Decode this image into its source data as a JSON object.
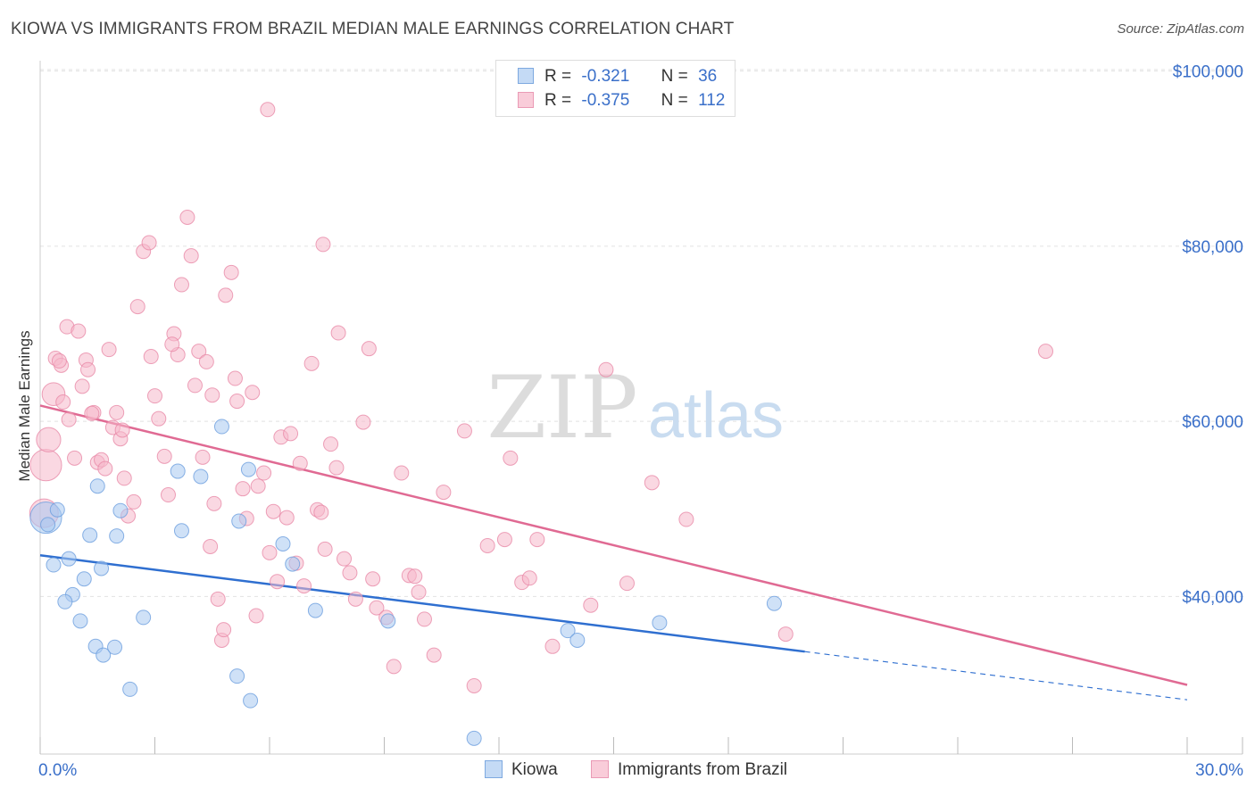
{
  "header": {
    "title": "KIOWA VS IMMIGRANTS FROM BRAZIL MEDIAN MALE EARNINGS CORRELATION CHART",
    "source": "Source: ZipAtlas.com"
  },
  "watermark": {
    "zip": "ZIP",
    "atlas": "atlas"
  },
  "legend": {
    "rows": [
      {
        "r_label": "R =",
        "r_value": "-0.321",
        "n_label": "N =",
        "n_value": "36",
        "color": "#a8c8f0"
      },
      {
        "r_label": "R =",
        "r_value": "-0.375",
        "n_label": "N =",
        "n_value": "112",
        "color": "#f5b8cb"
      }
    ]
  },
  "colors": {
    "kiowa_fill": "#a8c8f0",
    "kiowa_stroke": "#6d9fdf",
    "kiowa_line": "#2f6fd0",
    "brazil_fill": "#f5b8cb",
    "brazil_stroke": "#e88aa8",
    "brazil_line": "#e06a93",
    "axis_label": "#3a6fc9"
  },
  "chart_data": {
    "type": "scatter",
    "title": "KIOWA VS IMMIGRANTS FROM BRAZIL MEDIAN MALE EARNINGS CORRELATION CHART",
    "xlabel": "",
    "ylabel": "Median Male Earnings",
    "xlim": [
      0,
      30
    ],
    "ylim": [
      22000,
      102000
    ],
    "x_tick_labels": [
      "0.0%",
      "30.0%"
    ],
    "y_ticks": [
      40000,
      60000,
      80000,
      100000
    ],
    "y_tick_labels": [
      "$40,000",
      "$60,000",
      "$80,000",
      "$100,000"
    ],
    "grid": true,
    "series": [
      {
        "name": "Kiowa",
        "r": -0.321,
        "n": 36,
        "trend": {
          "x0": 0,
          "y0": 44700,
          "x1": 20,
          "y1": 33700,
          "dash_to_x": 30,
          "dash_to_y": 28200
        },
        "points": [
          [
            0.15,
            49000,
            2.2
          ],
          [
            0.2,
            48200,
            1
          ],
          [
            0.45,
            49900,
            1
          ],
          [
            0.35,
            43600,
            1
          ],
          [
            0.75,
            44300,
            1
          ],
          [
            1.3,
            47000,
            1
          ],
          [
            1.6,
            43200,
            1
          ],
          [
            1.5,
            52600,
            1
          ],
          [
            2.1,
            49800,
            1
          ],
          [
            2.0,
            46900,
            1
          ],
          [
            1.15,
            42000,
            1
          ],
          [
            0.85,
            40200,
            1
          ],
          [
            0.65,
            39400,
            1
          ],
          [
            1.05,
            37200,
            1
          ],
          [
            2.7,
            37600,
            1
          ],
          [
            1.45,
            34300,
            1
          ],
          [
            1.65,
            33300,
            1
          ],
          [
            1.95,
            34200,
            1
          ],
          [
            2.35,
            29400,
            1
          ],
          [
            3.6,
            54300,
            1
          ],
          [
            3.7,
            47500,
            1
          ],
          [
            4.2,
            53700,
            1
          ],
          [
            4.75,
            59400,
            1
          ],
          [
            5.2,
            48600,
            1
          ],
          [
            5.45,
            54500,
            1
          ],
          [
            6.35,
            46000,
            1
          ],
          [
            6.6,
            43700,
            1
          ],
          [
            7.2,
            38400,
            1
          ],
          [
            9.1,
            37200,
            1
          ],
          [
            13.8,
            36100,
            1
          ],
          [
            14.05,
            35000,
            1
          ],
          [
            16.2,
            37000,
            1
          ],
          [
            19.2,
            39200,
            1
          ],
          [
            5.15,
            30900,
            1
          ],
          [
            5.5,
            28100,
            1
          ],
          [
            11.35,
            23800,
            1
          ]
        ]
      },
      {
        "name": "Immigrants from Brazil",
        "r": -0.375,
        "n": 112,
        "trend": {
          "x0": 0,
          "y0": 61800,
          "x1": 30,
          "y1": 29900
        },
        "points": [
          [
            0.15,
            55000,
            2.2
          ],
          [
            0.1,
            49500,
            2.0
          ],
          [
            0.22,
            57900,
            1.7
          ],
          [
            0.35,
            63100,
            1.6
          ],
          [
            0.4,
            67200,
            1
          ],
          [
            0.55,
            66400,
            1
          ],
          [
            0.7,
            70800,
            1
          ],
          [
            0.6,
            62200,
            1
          ],
          [
            0.75,
            60200,
            1
          ],
          [
            0.9,
            55800,
            1
          ],
          [
            1.0,
            70300,
            1
          ],
          [
            1.1,
            64000,
            1
          ],
          [
            1.2,
            67000,
            1
          ],
          [
            1.25,
            65900,
            1
          ],
          [
            1.4,
            61000,
            1
          ],
          [
            1.5,
            55300,
            1
          ],
          [
            1.6,
            55600,
            1
          ],
          [
            1.7,
            54600,
            1
          ],
          [
            1.8,
            68200,
            1
          ],
          [
            1.9,
            59300,
            1
          ],
          [
            2.0,
            61000,
            1
          ],
          [
            2.1,
            58000,
            1
          ],
          [
            2.2,
            53500,
            1
          ],
          [
            2.3,
            49200,
            1
          ],
          [
            2.45,
            50800,
            1
          ],
          [
            2.55,
            73100,
            1
          ],
          [
            2.7,
            79400,
            1
          ],
          [
            2.85,
            80400,
            1
          ],
          [
            2.9,
            67400,
            1
          ],
          [
            3.0,
            62900,
            1
          ],
          [
            3.1,
            60300,
            1
          ],
          [
            3.25,
            56000,
            1
          ],
          [
            3.35,
            51600,
            1
          ],
          [
            3.5,
            70000,
            1
          ],
          [
            3.6,
            67600,
            1
          ],
          [
            3.7,
            75600,
            1
          ],
          [
            3.85,
            83300,
            1
          ],
          [
            3.95,
            78900,
            1
          ],
          [
            4.05,
            64100,
            1
          ],
          [
            4.15,
            68000,
            1
          ],
          [
            4.25,
            55900,
            1
          ],
          [
            4.35,
            66800,
            1
          ],
          [
            4.45,
            45700,
            1
          ],
          [
            4.55,
            50600,
            1
          ],
          [
            4.65,
            39700,
            1
          ],
          [
            4.75,
            35000,
            1
          ],
          [
            4.85,
            74400,
            1
          ],
          [
            5.0,
            77000,
            1
          ],
          [
            5.1,
            64900,
            1
          ],
          [
            5.15,
            62300,
            1
          ],
          [
            5.3,
            52300,
            1
          ],
          [
            5.4,
            48900,
            1
          ],
          [
            5.55,
            63300,
            1
          ],
          [
            5.7,
            52600,
            1
          ],
          [
            5.85,
            54100,
            1
          ],
          [
            6.0,
            45000,
            1
          ],
          [
            6.1,
            49700,
            1
          ],
          [
            6.2,
            41700,
            1
          ],
          [
            6.3,
            58200,
            1
          ],
          [
            6.45,
            49000,
            1
          ],
          [
            6.55,
            58600,
            1
          ],
          [
            6.8,
            55200,
            1
          ],
          [
            6.9,
            41200,
            1
          ],
          [
            7.1,
            66600,
            1
          ],
          [
            7.25,
            49900,
            1
          ],
          [
            7.45,
            45400,
            1
          ],
          [
            7.6,
            57400,
            1
          ],
          [
            7.75,
            54700,
            1
          ],
          [
            7.95,
            44300,
            1
          ],
          [
            8.1,
            42700,
            1
          ],
          [
            8.25,
            39700,
            1
          ],
          [
            8.45,
            59900,
            1
          ],
          [
            8.6,
            68300,
            1
          ],
          [
            8.8,
            38700,
            1
          ],
          [
            9.05,
            37600,
            1
          ],
          [
            9.25,
            32000,
            1
          ],
          [
            9.45,
            54100,
            1
          ],
          [
            9.65,
            42400,
            1
          ],
          [
            9.8,
            42300,
            1
          ],
          [
            10.05,
            37400,
            1
          ],
          [
            10.55,
            51900,
            1
          ],
          [
            11.1,
            58900,
            1
          ],
          [
            11.35,
            29800,
            1
          ],
          [
            12.15,
            46500,
            1
          ],
          [
            12.3,
            55800,
            1
          ],
          [
            12.6,
            41600,
            1
          ],
          [
            12.8,
            42100,
            1
          ],
          [
            13.0,
            46500,
            1
          ],
          [
            13.4,
            34300,
            1
          ],
          [
            14.4,
            39000,
            1
          ],
          [
            14.8,
            65900,
            1
          ],
          [
            15.35,
            41500,
            1
          ],
          [
            16.0,
            53000,
            1
          ],
          [
            16.9,
            48800,
            1
          ],
          [
            19.5,
            35700,
            1
          ],
          [
            26.3,
            68000,
            1
          ],
          [
            5.95,
            95600,
            1
          ],
          [
            7.4,
            80200,
            1
          ],
          [
            7.8,
            70100,
            1
          ],
          [
            2.15,
            59000,
            1
          ],
          [
            3.45,
            68800,
            1
          ],
          [
            4.5,
            63000,
            1
          ],
          [
            0.5,
            66900,
            1
          ],
          [
            1.35,
            60900,
            1
          ],
          [
            5.65,
            37800,
            1
          ],
          [
            6.7,
            43800,
            1
          ],
          [
            7.35,
            49600,
            1
          ],
          [
            8.7,
            42000,
            1
          ],
          [
            9.9,
            40500,
            1
          ],
          [
            10.3,
            33300,
            1
          ],
          [
            11.7,
            45800,
            1
          ],
          [
            4.8,
            36200,
            1
          ]
        ]
      }
    ]
  },
  "bottom_legend": [
    {
      "label": "Kiowa"
    },
    {
      "label": "Immigrants from Brazil"
    }
  ]
}
